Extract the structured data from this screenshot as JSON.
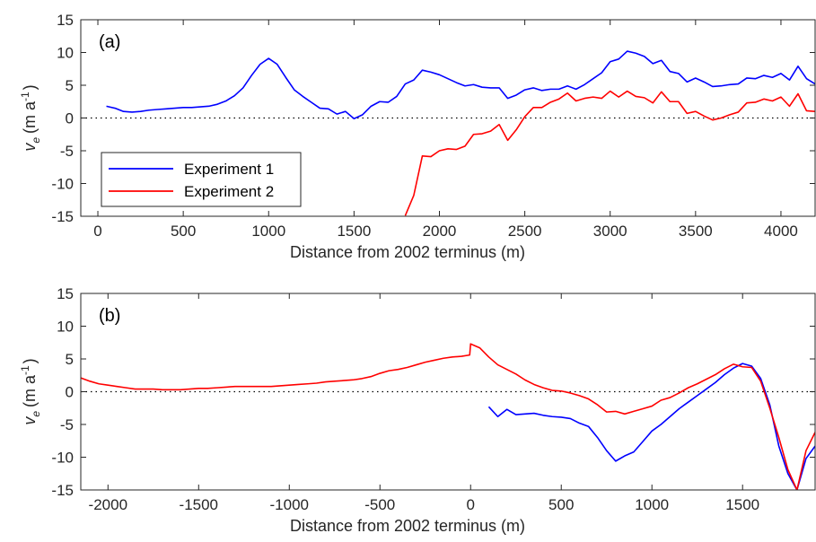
{
  "chart_data": [
    {
      "type": "line",
      "panel_label": "(a)",
      "xlabel": "Distance from 2002 terminus (m)",
      "ylabel": {
        "symbol": "v",
        "subscript": "e",
        "units_prefix": "(m a",
        "superscript": "-1",
        "units_suffix": ")"
      },
      "xlim": [
        -100,
        4200
      ],
      "ylim": [
        -15,
        15
      ],
      "xticks": [
        0,
        500,
        1000,
        1500,
        2000,
        2500,
        3000,
        3500,
        4000
      ],
      "yticks": [
        -15,
        -10,
        -5,
        0,
        5,
        10,
        15
      ],
      "zero_line": "dotted",
      "grid": false,
      "legend": {
        "placement": "lower-left",
        "entries": [
          {
            "label": "Experiment 1",
            "color": "#0000ff"
          },
          {
            "label": "Experiment 2",
            "color": "#ff0000"
          }
        ]
      },
      "series": [
        {
          "name": "Experiment 1",
          "color": "#0000ff",
          "points": [
            [
              50,
              1.8
            ],
            [
              100,
              1.5
            ],
            [
              150,
              1.0
            ],
            [
              200,
              0.9
            ],
            [
              250,
              1.0
            ],
            [
              300,
              1.2
            ],
            [
              350,
              1.3
            ],
            [
              400,
              1.4
            ],
            [
              450,
              1.5
            ],
            [
              500,
              1.6
            ],
            [
              550,
              1.6
            ],
            [
              600,
              1.7
            ],
            [
              650,
              1.8
            ],
            [
              700,
              2.1
            ],
            [
              750,
              2.6
            ],
            [
              800,
              3.4
            ],
            [
              850,
              4.6
            ],
            [
              900,
              6.5
            ],
            [
              950,
              8.2
            ],
            [
              1000,
              9.1
            ],
            [
              1050,
              8.2
            ],
            [
              1100,
              6.2
            ],
            [
              1150,
              4.3
            ],
            [
              1200,
              3.3
            ],
            [
              1250,
              2.4
            ],
            [
              1300,
              1.5
            ],
            [
              1350,
              1.4
            ],
            [
              1400,
              0.6
            ],
            [
              1450,
              1.0
            ],
            [
              1500,
              -0.1
            ],
            [
              1550,
              0.5
            ],
            [
              1600,
              1.8
            ],
            [
              1650,
              2.5
            ],
            [
              1700,
              2.4
            ],
            [
              1750,
              3.3
            ],
            [
              1800,
              5.2
            ],
            [
              1850,
              5.8
            ],
            [
              1900,
              7.3
            ],
            [
              1950,
              7.0
            ],
            [
              2000,
              6.6
            ],
            [
              2050,
              6.0
            ],
            [
              2100,
              5.4
            ],
            [
              2150,
              4.9
            ],
            [
              2200,
              5.1
            ],
            [
              2250,
              4.7
            ],
            [
              2300,
              4.6
            ],
            [
              2350,
              4.6
            ],
            [
              2400,
              3.0
            ],
            [
              2450,
              3.5
            ],
            [
              2500,
              4.3
            ],
            [
              2550,
              4.6
            ],
            [
              2600,
              4.2
            ],
            [
              2650,
              4.4
            ],
            [
              2700,
              4.4
            ],
            [
              2750,
              4.9
            ],
            [
              2800,
              4.4
            ],
            [
              2850,
              5.1
            ],
            [
              2900,
              6.0
            ],
            [
              2950,
              6.9
            ],
            [
              3000,
              8.6
            ],
            [
              3050,
              9.0
            ],
            [
              3100,
              10.2
            ],
            [
              3150,
              9.9
            ],
            [
              3200,
              9.4
            ],
            [
              3250,
              8.3
            ],
            [
              3300,
              8.8
            ],
            [
              3350,
              7.1
            ],
            [
              3400,
              6.8
            ],
            [
              3450,
              5.5
            ],
            [
              3500,
              6.1
            ],
            [
              3550,
              5.5
            ],
            [
              3600,
              4.8
            ],
            [
              3650,
              4.9
            ],
            [
              3700,
              5.1
            ],
            [
              3750,
              5.2
            ],
            [
              3800,
              6.1
            ],
            [
              3850,
              6.0
            ],
            [
              3900,
              6.5
            ],
            [
              3950,
              6.2
            ],
            [
              4000,
              6.8
            ],
            [
              4050,
              5.8
            ],
            [
              4100,
              7.9
            ],
            [
              4150,
              6.0
            ],
            [
              4200,
              5.2
            ]
          ]
        },
        {
          "name": "Experiment 2",
          "color": "#ff0000",
          "points": [
            [
              1800,
              -14.9
            ],
            [
              1850,
              -11.8
            ],
            [
              1900,
              -5.8
            ],
            [
              1950,
              -5.9
            ],
            [
              2000,
              -5.0
            ],
            [
              2050,
              -4.7
            ],
            [
              2100,
              -4.8
            ],
            [
              2150,
              -4.3
            ],
            [
              2200,
              -2.5
            ],
            [
              2250,
              -2.4
            ],
            [
              2300,
              -2.0
            ],
            [
              2350,
              -1.0
            ],
            [
              2400,
              -3.4
            ],
            [
              2450,
              -1.8
            ],
            [
              2500,
              0.2
            ],
            [
              2550,
              1.6
            ],
            [
              2600,
              1.6
            ],
            [
              2650,
              2.4
            ],
            [
              2700,
              2.9
            ],
            [
              2750,
              3.8
            ],
            [
              2800,
              2.6
            ],
            [
              2850,
              3.0
            ],
            [
              2900,
              3.2
            ],
            [
              2950,
              3.0
            ],
            [
              3000,
              4.1
            ],
            [
              3050,
              3.2
            ],
            [
              3100,
              4.1
            ],
            [
              3150,
              3.3
            ],
            [
              3200,
              3.1
            ],
            [
              3250,
              2.3
            ],
            [
              3300,
              4.0
            ],
            [
              3350,
              2.5
            ],
            [
              3400,
              2.5
            ],
            [
              3450,
              0.7
            ],
            [
              3500,
              1.0
            ],
            [
              3550,
              0.3
            ],
            [
              3600,
              -0.3
            ],
            [
              3650,
              0.0
            ],
            [
              3700,
              0.5
            ],
            [
              3750,
              0.9
            ],
            [
              3800,
              2.3
            ],
            [
              3850,
              2.4
            ],
            [
              3900,
              2.9
            ],
            [
              3950,
              2.6
            ],
            [
              4000,
              3.2
            ],
            [
              4050,
              1.8
            ],
            [
              4100,
              3.7
            ],
            [
              4150,
              1.1
            ],
            [
              4200,
              1.0
            ]
          ]
        }
      ]
    },
    {
      "type": "line",
      "panel_label": "(b)",
      "xlabel": "Distance from 2002 terminus (m)",
      "ylabel": {
        "symbol": "v",
        "subscript": "e",
        "units_prefix": "(m a",
        "superscript": "-1",
        "units_suffix": ")"
      },
      "xlim": [
        -2150,
        1900
      ],
      "ylim": [
        -15,
        15
      ],
      "xticks": [
        -2000,
        -1500,
        -1000,
        -500,
        0,
        500,
        1000,
        1500
      ],
      "yticks": [
        -15,
        -10,
        -5,
        0,
        5,
        10,
        15
      ],
      "zero_line": "dotted",
      "grid": false,
      "series": [
        {
          "name": "Experiment 1",
          "color": "#0000ff",
          "points": [
            [
              100,
              -2.3
            ],
            [
              150,
              -3.8
            ],
            [
              200,
              -2.7
            ],
            [
              250,
              -3.5
            ],
            [
              300,
              -3.4
            ],
            [
              350,
              -3.3
            ],
            [
              400,
              -3.6
            ],
            [
              450,
              -3.8
            ],
            [
              500,
              -3.9
            ],
            [
              550,
              -4.1
            ],
            [
              600,
              -4.8
            ],
            [
              650,
              -5.3
            ],
            [
              700,
              -7.0
            ],
            [
              750,
              -9.0
            ],
            [
              800,
              -10.6
            ],
            [
              850,
              -9.8
            ],
            [
              900,
              -9.2
            ],
            [
              950,
              -7.6
            ],
            [
              1000,
              -6.0
            ],
            [
              1050,
              -5.0
            ],
            [
              1100,
              -3.8
            ],
            [
              1150,
              -2.6
            ],
            [
              1200,
              -1.6
            ],
            [
              1250,
              -0.6
            ],
            [
              1300,
              0.4
            ],
            [
              1350,
              1.4
            ],
            [
              1400,
              2.6
            ],
            [
              1450,
              3.6
            ],
            [
              1500,
              4.3
            ],
            [
              1550,
              3.9
            ],
            [
              1600,
              2.0
            ],
            [
              1650,
              -2.0
            ],
            [
              1700,
              -8.3
            ],
            [
              1750,
              -12.5
            ],
            [
              1800,
              -15.0
            ],
            [
              1850,
              -10.2
            ],
            [
              1900,
              -8.3
            ]
          ]
        },
        {
          "name": "Experiment 2",
          "color": "#ff0000",
          "points": [
            [
              -2150,
              2.1
            ],
            [
              -2100,
              1.6
            ],
            [
              -2050,
              1.2
            ],
            [
              -2000,
              1.0
            ],
            [
              -1950,
              0.8
            ],
            [
              -1900,
              0.6
            ],
            [
              -1850,
              0.4
            ],
            [
              -1800,
              0.4
            ],
            [
              -1750,
              0.4
            ],
            [
              -1700,
              0.3
            ],
            [
              -1650,
              0.3
            ],
            [
              -1600,
              0.3
            ],
            [
              -1550,
              0.4
            ],
            [
              -1500,
              0.5
            ],
            [
              -1450,
              0.5
            ],
            [
              -1400,
              0.6
            ],
            [
              -1350,
              0.7
            ],
            [
              -1300,
              0.8
            ],
            [
              -1250,
              0.8
            ],
            [
              -1200,
              0.8
            ],
            [
              -1150,
              0.8
            ],
            [
              -1100,
              0.8
            ],
            [
              -1050,
              0.9
            ],
            [
              -1000,
              1.0
            ],
            [
              -950,
              1.1
            ],
            [
              -900,
              1.2
            ],
            [
              -850,
              1.3
            ],
            [
              -800,
              1.5
            ],
            [
              -750,
              1.6
            ],
            [
              -700,
              1.7
            ],
            [
              -650,
              1.8
            ],
            [
              -600,
              2.0
            ],
            [
              -550,
              2.3
            ],
            [
              -500,
              2.8
            ],
            [
              -450,
              3.2
            ],
            [
              -400,
              3.4
            ],
            [
              -350,
              3.7
            ],
            [
              -300,
              4.1
            ],
            [
              -250,
              4.5
            ],
            [
              -200,
              4.8
            ],
            [
              -150,
              5.1
            ],
            [
              -100,
              5.3
            ],
            [
              -50,
              5.4
            ],
            [
              -5,
              5.6
            ],
            [
              0,
              7.3
            ],
            [
              50,
              6.7
            ],
            [
              100,
              5.3
            ],
            [
              150,
              4.1
            ],
            [
              200,
              3.4
            ],
            [
              250,
              2.7
            ],
            [
              300,
              1.8
            ],
            [
              350,
              1.1
            ],
            [
              400,
              0.6
            ],
            [
              450,
              0.2
            ],
            [
              500,
              0.1
            ],
            [
              550,
              -0.2
            ],
            [
              600,
              -0.6
            ],
            [
              650,
              -1.1
            ],
            [
              700,
              -2.0
            ],
            [
              750,
              -3.1
            ],
            [
              800,
              -3.0
            ],
            [
              850,
              -3.4
            ],
            [
              900,
              -3.0
            ],
            [
              950,
              -2.6
            ],
            [
              1000,
              -2.2
            ],
            [
              1050,
              -1.3
            ],
            [
              1100,
              -0.9
            ],
            [
              1150,
              -0.2
            ],
            [
              1200,
              0.6
            ],
            [
              1250,
              1.2
            ],
            [
              1300,
              1.9
            ],
            [
              1350,
              2.6
            ],
            [
              1400,
              3.5
            ],
            [
              1450,
              4.2
            ],
            [
              1500,
              3.8
            ],
            [
              1550,
              3.7
            ],
            [
              1600,
              1.6
            ],
            [
              1650,
              -2.5
            ],
            [
              1700,
              -7.0
            ],
            [
              1750,
              -11.9
            ],
            [
              1800,
              -15.0
            ],
            [
              1850,
              -9.0
            ],
            [
              1900,
              -6.2
            ]
          ]
        }
      ]
    }
  ]
}
